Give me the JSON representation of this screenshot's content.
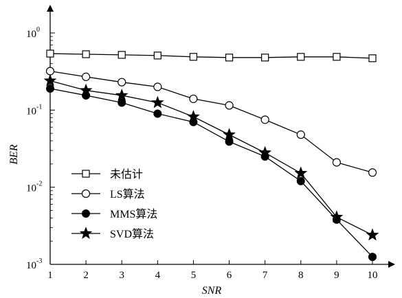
{
  "chart_data": {
    "type": "line",
    "xlabel": "SNR",
    "ylabel": "BER",
    "yscale": "log",
    "xlim": [
      1,
      10
    ],
    "ylim": [
      0.001,
      1
    ],
    "grid": false,
    "legend_position": "lower-left",
    "x": [
      1,
      2,
      3,
      4,
      5,
      6,
      7,
      8,
      9,
      10
    ],
    "x_tick_labels": [
      "1",
      "2",
      "3",
      "4",
      "5",
      "6",
      "7",
      "8",
      "9",
      "10"
    ],
    "y_ticks": [
      {
        "value": 1,
        "base": "10",
        "exp": "0"
      },
      {
        "value": 0.1,
        "base": "10",
        "exp": "-1"
      },
      {
        "value": 0.01,
        "base": "10",
        "exp": "-2"
      },
      {
        "value": 0.001,
        "base": "10",
        "exp": "-3"
      }
    ],
    "series": [
      {
        "name": "未估计",
        "marker": "square",
        "values": [
          0.54,
          0.53,
          0.52,
          0.51,
          0.49,
          0.48,
          0.48,
          0.49,
          0.49,
          0.47
        ]
      },
      {
        "name": "LS算法",
        "marker": "circle-open",
        "values": [
          0.32,
          0.27,
          0.23,
          0.2,
          0.14,
          0.115,
          0.075,
          0.048,
          0.021,
          0.0155
        ]
      },
      {
        "name": "MMS算法",
        "marker": "circle-filled",
        "values": [
          0.19,
          0.155,
          0.125,
          0.09,
          0.07,
          0.039,
          0.025,
          0.012,
          0.0038,
          0.00125
        ]
      },
      {
        "name": "SVD算法",
        "marker": "star",
        "values": [
          0.24,
          0.18,
          0.155,
          0.125,
          0.082,
          0.048,
          0.028,
          0.0152,
          0.0041,
          0.0024
        ]
      }
    ]
  }
}
